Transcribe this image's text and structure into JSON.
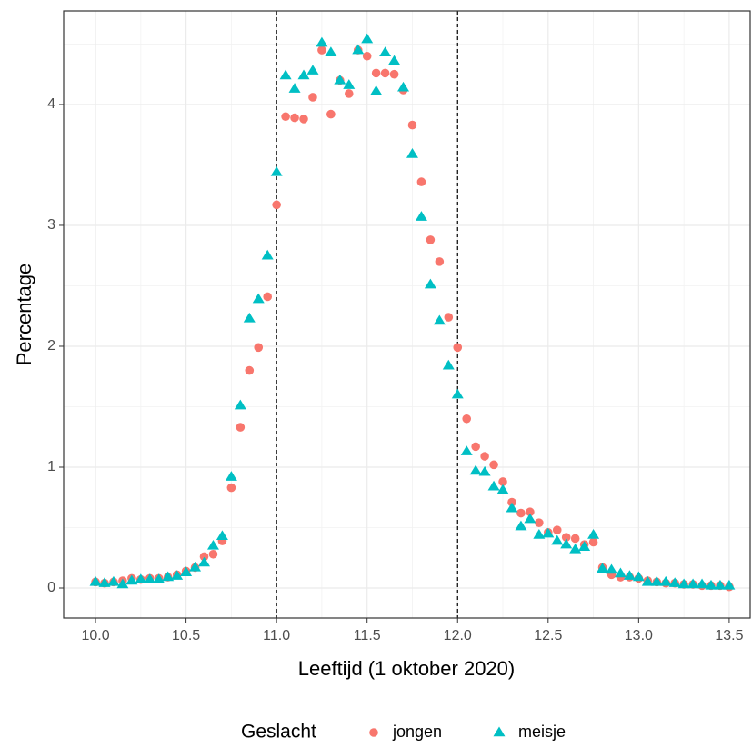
{
  "chart_data": {
    "type": "scatter",
    "x_label": "Leeftijd (1 oktober 2020)",
    "y_label": "Percentage",
    "legend_title": "Geslacht",
    "x": [
      10.0,
      10.05,
      10.1,
      10.15,
      10.2,
      10.25,
      10.3,
      10.35,
      10.4,
      10.45,
      10.5,
      10.55,
      10.6,
      10.65,
      10.7,
      10.75,
      10.8,
      10.85,
      10.9,
      10.95,
      11.0,
      11.05,
      11.1,
      11.15,
      11.2,
      11.25,
      11.3,
      11.35,
      11.4,
      11.45,
      11.5,
      11.55,
      11.6,
      11.65,
      11.7,
      11.75,
      11.8,
      11.85,
      11.9,
      11.95,
      12.0,
      12.05,
      12.1,
      12.15,
      12.2,
      12.25,
      12.3,
      12.35,
      12.4,
      12.45,
      12.5,
      12.55,
      12.6,
      12.65,
      12.7,
      12.75,
      12.8,
      12.85,
      12.9,
      12.95,
      13.0,
      13.05,
      13.1,
      13.15,
      13.2,
      13.25,
      13.3,
      13.35,
      13.4,
      13.45,
      13.5
    ],
    "series": [
      {
        "name": "jongen",
        "color": "#F8766D",
        "marker": "circle",
        "values": [
          0.05,
          0.04,
          0.05,
          0.06,
          0.08,
          0.07,
          0.08,
          0.08,
          0.09,
          0.11,
          0.14,
          0.17,
          0.26,
          0.28,
          0.39,
          0.83,
          1.33,
          1.8,
          1.99,
          2.41,
          3.17,
          3.9,
          3.89,
          3.88,
          4.06,
          4.45,
          3.92,
          4.2,
          4.09,
          4.45,
          4.4,
          4.26,
          4.26,
          4.25,
          4.12,
          3.83,
          3.36,
          2.88,
          2.7,
          2.24,
          1.99,
          1.4,
          1.17,
          1.09,
          1.02,
          0.88,
          0.71,
          0.62,
          0.63,
          0.54,
          0.46,
          0.48,
          0.42,
          0.41,
          0.36,
          0.38,
          0.17,
          0.11,
          0.09,
          0.09,
          0.08,
          0.06,
          0.05,
          0.04,
          0.04,
          0.03,
          0.03,
          0.02,
          0.02,
          0.02,
          0.01
        ]
      },
      {
        "name": "meisje",
        "color": "#00BFC4",
        "marker": "triangle",
        "values": [
          0.05,
          0.04,
          0.05,
          0.03,
          0.06,
          0.07,
          0.07,
          0.07,
          0.09,
          0.1,
          0.13,
          0.17,
          0.21,
          0.35,
          0.43,
          0.92,
          1.51,
          2.23,
          2.39,
          2.75,
          3.44,
          4.24,
          4.13,
          4.24,
          4.28,
          4.51,
          4.43,
          4.2,
          4.16,
          4.45,
          4.54,
          4.11,
          4.43,
          4.36,
          4.14,
          3.59,
          3.07,
          2.51,
          2.21,
          1.84,
          1.6,
          1.13,
          0.97,
          0.96,
          0.84,
          0.81,
          0.66,
          0.51,
          0.57,
          0.44,
          0.45,
          0.39,
          0.36,
          0.32,
          0.34,
          0.44,
          0.16,
          0.15,
          0.12,
          0.1,
          0.09,
          0.05,
          0.05,
          0.05,
          0.04,
          0.03,
          0.03,
          0.03,
          0.02,
          0.02,
          0.02
        ]
      }
    ],
    "xlim": [
      9.824,
      13.616
    ],
    "ylim": [
      -0.248,
      4.774
    ],
    "xticks": [
      {
        "value": 10,
        "label": "10.0"
      },
      10.5,
      {
        "value": 11,
        "label": "11.0"
      },
      11.5,
      {
        "value": 12,
        "label": "12.0"
      },
      12.5,
      {
        "value": 13,
        "label": "13.0"
      },
      13.5
    ],
    "yticks": [
      0,
      1,
      2,
      3,
      4
    ],
    "vlines": [
      11,
      12
    ],
    "grid": true,
    "legend_position": "bottom"
  }
}
